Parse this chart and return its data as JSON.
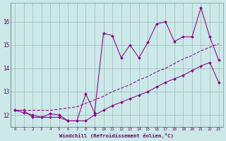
{
  "xlabel": "Windchill (Refroidissement éolien,°C)",
  "x": [
    0,
    1,
    2,
    3,
    4,
    5,
    6,
    7,
    8,
    9,
    10,
    11,
    12,
    13,
    14,
    15,
    16,
    17,
    18,
    19,
    20,
    21,
    22,
    23
  ],
  "line_min": [
    12.2,
    12.2,
    11.9,
    11.9,
    11.9,
    11.9,
    11.75,
    11.75,
    11.75,
    12.0,
    12.2,
    12.4,
    12.55,
    12.7,
    12.85,
    13.0,
    13.2,
    13.4,
    13.55,
    13.7,
    13.9,
    14.1,
    14.25,
    13.4
  ],
  "line_max": [
    12.2,
    12.1,
    12.0,
    11.9,
    12.05,
    12.0,
    11.75,
    11.75,
    12.9,
    12.1,
    15.5,
    15.4,
    14.45,
    15.0,
    14.45,
    15.1,
    15.9,
    16.0,
    15.15,
    15.35,
    15.35,
    16.6,
    15.35,
    14.35
  ],
  "line_avg": [
    12.2,
    12.2,
    12.2,
    12.2,
    12.2,
    12.25,
    12.3,
    12.35,
    12.5,
    12.65,
    12.8,
    13.0,
    13.15,
    13.3,
    13.5,
    13.65,
    13.85,
    14.0,
    14.2,
    14.4,
    14.55,
    14.75,
    14.9,
    15.05
  ],
  "bg_color": "#cce8e8",
  "line_color": "#880088",
  "grid_color": "#99bbbb",
  "tick_label_color": "#660066",
  "xlabel_color": "#660066",
  "ylim": [
    11.5,
    16.8
  ],
  "yticks": [
    12,
    13,
    14,
    15,
    16
  ],
  "marker": "D",
  "markersize": 2.0,
  "linewidth": 0.75
}
